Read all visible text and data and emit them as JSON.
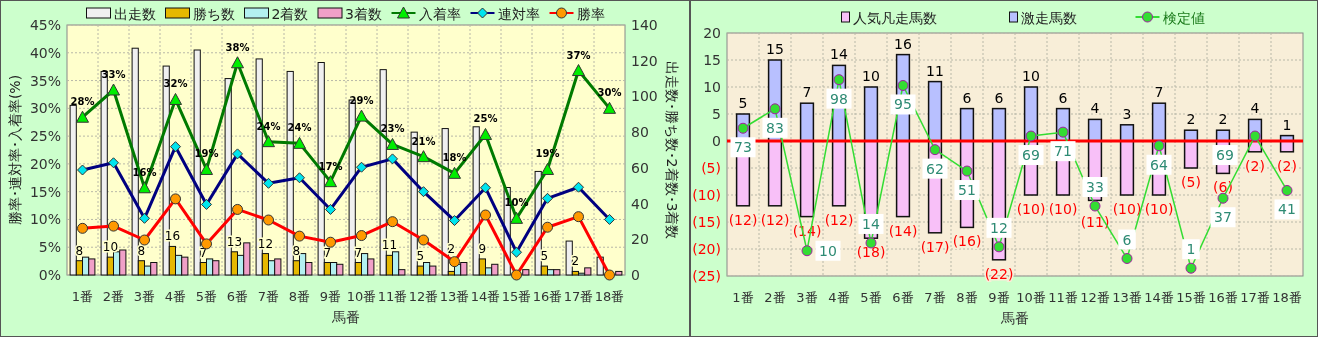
{
  "chart_data": [
    {
      "type": "bar",
      "categories": [
        "1番",
        "2番",
        "3番",
        "4番",
        "5番",
        "6番",
        "7番",
        "8番",
        "9番",
        "10番",
        "11番",
        "12番",
        "13番",
        "14番",
        "15番",
        "16番",
        "17番",
        "18番"
      ],
      "xlabel": "馬番",
      "ylabel": "勝率･連対率･入着率(%)",
      "y2label": "出走数･勝ち数･2着数･3着数",
      "ylim": [
        0,
        45
      ],
      "yticks": [
        {
          "value": 0,
          "label": "0%"
        },
        {
          "value": 5,
          "label": "5%"
        },
        {
          "value": 10,
          "label": "10%"
        },
        {
          "value": 15,
          "label": "15%"
        },
        {
          "value": 20,
          "label": "20%"
        },
        {
          "value": 25,
          "label": "25%"
        },
        {
          "value": 30,
          "label": "30%"
        },
        {
          "value": 35,
          "label": "35%"
        },
        {
          "value": 40,
          "label": "40%"
        },
        {
          "value": 45,
          "label": "45%"
        }
      ],
      "y2lim": [
        0,
        140
      ],
      "y2ticks": [
        0,
        20,
        40,
        60,
        80,
        100,
        120,
        140
      ],
      "grid": true,
      "legend": "top",
      "series": [
        {
          "name": "出走数",
          "type": "bar",
          "axis": "y2",
          "color": "#f0f0f0",
          "values": [
            95,
            114,
            127,
            117,
            126,
            110,
            121,
            114,
            119,
            98,
            115,
            80,
            82,
            83,
            49,
            58,
            19,
            10
          ]
        },
        {
          "name": "勝ち数",
          "type": "bar",
          "axis": "y2",
          "color": "#e6b800",
          "values": [
            8,
            10,
            8,
            16,
            7,
            13,
            12,
            8,
            7,
            7,
            11,
            5,
            2,
            9,
            0,
            5,
            2,
            0
          ],
          "value_labels": [
            "8",
            "10",
            "8",
            "16",
            "7",
            "13",
            "12",
            "8",
            "7",
            "7",
            "11",
            "5",
            "2",
            "9",
            null,
            "5",
            "2",
            null
          ]
        },
        {
          "name": "2着数",
          "type": "bar",
          "axis": "y2",
          "color": "#b3f0f0",
          "values": [
            10,
            13,
            5,
            11,
            9,
            11,
            8,
            12,
            7,
            12,
            13,
            7,
            6,
            4,
            null,
            3,
            1,
            null
          ]
        },
        {
          "name": "3着数",
          "type": "bar",
          "axis": "y2",
          "color": "#f0a0c8",
          "values": [
            9,
            14,
            7,
            10,
            8,
            18,
            9,
            7,
            6,
            9,
            3,
            5,
            7,
            6,
            3,
            3,
            4,
            2
          ]
        },
        {
          "name": "入着率",
          "type": "line",
          "color": "#007a00",
          "marker": "triangle",
          "colors": [
            "#00ee00",
            "#00ee00",
            "#00ee00",
            "#00ee00",
            "#00ee00",
            "#00ee00",
            "#00ee00",
            "#00ee00",
            "#00ee00",
            "#00ee00",
            "#00ee00",
            "#00ee00",
            "#00ee00",
            "#00ee00",
            "#00ee00",
            "#00ee00",
            "#00ee00",
            "#00ee00"
          ],
          "values": [
            28.4,
            33.3,
            15.7,
            31.6,
            19.0,
            38.2,
            24.0,
            23.7,
            16.8,
            28.6,
            23.5,
            21.3,
            18.3,
            25.3,
            10.2,
            19.0,
            36.8,
            30.0
          ],
          "value_labels": [
            "28%",
            "33%",
            "16%",
            "32%",
            "19%",
            "38%",
            "24%",
            "24%",
            "17%",
            "29%",
            "23%",
            "21%",
            "18%",
            "25%",
            "10%",
            "19%",
            "37%",
            "30%"
          ]
        },
        {
          "name": "連対率",
          "type": "line",
          "color": "#000080",
          "marker": "diamond",
          "colors": [
            "#00e5ee",
            "#00e5ee",
            "#00e5ee",
            "#00e5ee",
            "#00e5ee",
            "#00e5ee",
            "#00e5ee",
            "#00e5ee",
            "#00e5ee",
            "#00e5ee",
            "#00e5ee",
            "#00e5ee",
            "#00e5ee",
            "#00e5ee",
            "#00e5ee",
            "#00e5ee",
            "#00e5ee",
            "#00e5ee"
          ],
          "values": [
            18.9,
            20.2,
            10.2,
            23.1,
            12.7,
            21.8,
            16.5,
            17.5,
            11.8,
            19.4,
            20.9,
            15.0,
            9.8,
            15.7,
            4.1,
            13.8,
            15.8,
            10.0
          ]
        },
        {
          "name": "勝率",
          "type": "line",
          "color": "#ff0000",
          "marker": "circle",
          "colors": [
            "#ff9900",
            "#ff9900",
            "#ff9900",
            "#ff9900",
            "#ff9900",
            "#ff9900",
            "#ff9900",
            "#ff9900",
            "#ff9900",
            "#ff9900",
            "#ff9900",
            "#ff9900",
            "#ff9900",
            "#ff9900",
            "#ff9900",
            "#ff9900",
            "#ff9900",
            "#ff9900"
          ],
          "values": [
            8.4,
            8.8,
            6.3,
            13.7,
            5.6,
            11.8,
            9.9,
            7.0,
            5.9,
            7.1,
            9.6,
            6.3,
            2.4,
            10.8,
            0,
            8.6,
            10.5,
            0
          ]
        }
      ]
    },
    {
      "type": "bar",
      "stacked": true,
      "categories": [
        "1番",
        "2番",
        "3番",
        "4番",
        "5番",
        "6番",
        "7番",
        "8番",
        "9番",
        "10番",
        "11番",
        "12番",
        "13番",
        "14番",
        "15番",
        "16番",
        "17番",
        "18番"
      ],
      "xlabel": "馬番",
      "ylim": [
        -25,
        20
      ],
      "yticks": [
        20,
        15,
        10,
        5,
        0,
        {
          "value": -5,
          "label": "(5)"
        },
        {
          "value": -10,
          "label": "(10)"
        },
        {
          "value": -15,
          "label": "(15)"
        },
        {
          "value": -20,
          "label": "(20)"
        },
        {
          "value": -25,
          "label": "(25)"
        }
      ],
      "y2lim": [
        -3,
        122
      ],
      "grid": true,
      "legend": "top",
      "ref_lines": [
        {
          "axis": "y",
          "value": 0,
          "color": "#ff0000"
        }
      ],
      "series": [
        {
          "name": "人気凡走馬数",
          "color": "#f8c0f8",
          "values": [
            -12,
            -12,
            -14,
            -12,
            -18,
            -14,
            -17,
            -16,
            -22,
            -10,
            -10,
            -11,
            -10,
            -10,
            -5,
            -6,
            -2,
            -2
          ],
          "value_labels": [
            "(12)",
            "(12)",
            "(14)",
            "(12)",
            "(18)",
            "(14)",
            "(17)",
            "(16)",
            "(22)",
            "(10)",
            "(10)",
            "(11)",
            "(10)",
            "(10)",
            "(5)",
            "(6)",
            "(2)",
            "(2)"
          ]
        },
        {
          "name": "激走馬数",
          "color": "#b8c0ff",
          "values": [
            5,
            15,
            7,
            14,
            10,
            16,
            11,
            6,
            6,
            10,
            6,
            4,
            3,
            7,
            2,
            2,
            4,
            1
          ],
          "value_labels": [
            "5",
            "15",
            "7",
            "14",
            "10",
            "16",
            "11",
            "6",
            "6",
            "10",
            "6",
            "4",
            "3",
            "7",
            "2",
            "2",
            "4",
            "1"
          ]
        },
        {
          "name": "検定値",
          "type": "line",
          "axis": "y2",
          "color": "#33dd33",
          "marker": "circle",
          "values": [
            73,
            83,
            10,
            98,
            14,
            95,
            62,
            51,
            12,
            69,
            71,
            33,
            6,
            64,
            1,
            37,
            69,
            41
          ],
          "value_labels": [
            "73",
            "83",
            "10",
            "98",
            "14",
            "95",
            "62",
            "51",
            "12",
            "69",
            "71",
            "33",
            "6",
            "64",
            "1",
            "37",
            "69",
            "41"
          ]
        }
      ]
    }
  ]
}
